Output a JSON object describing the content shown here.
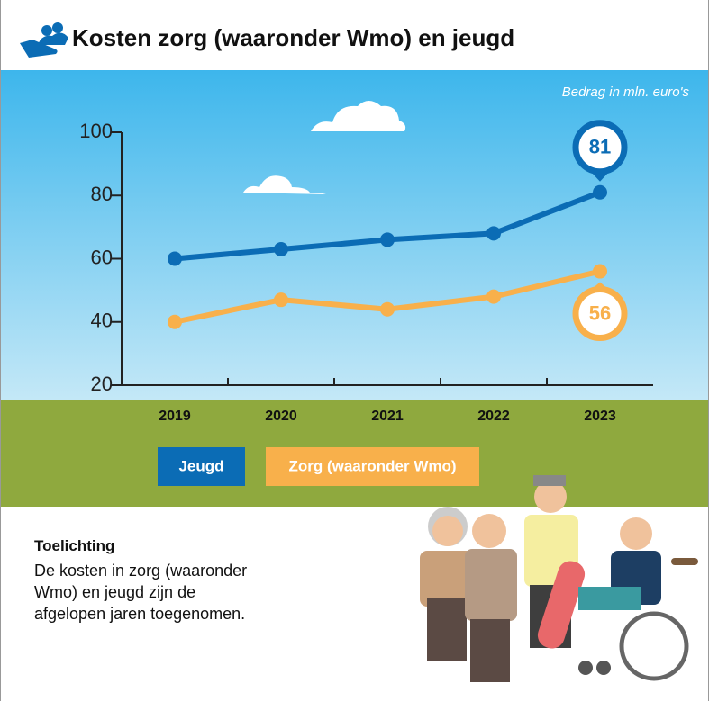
{
  "chart_data": {
    "type": "line",
    "title": "Kosten zorg (waaronder Wmo) en jeugd",
    "subtitle": "Bedrag in mln. euro's",
    "categories": [
      "2019",
      "2020",
      "2021",
      "2022",
      "2023"
    ],
    "series": [
      {
        "name": "Jeugd",
        "color": "#0b6cb5",
        "values": [
          60,
          63,
          66,
          68,
          81
        ]
      },
      {
        "name": "Zorg (waaronder Wmo)",
        "color": "#f8b04b",
        "values": [
          40,
          47,
          44,
          48,
          56
        ]
      }
    ],
    "ylim": [
      20,
      100
    ],
    "yticks": [
      20,
      40,
      60,
      80,
      100
    ]
  },
  "explanation": {
    "title": "Toelichting",
    "lines": [
      "De kosten in zorg (waaronder",
      "Wmo) en jeugd zijn de",
      "afgelopen jaren toegenomen."
    ]
  }
}
